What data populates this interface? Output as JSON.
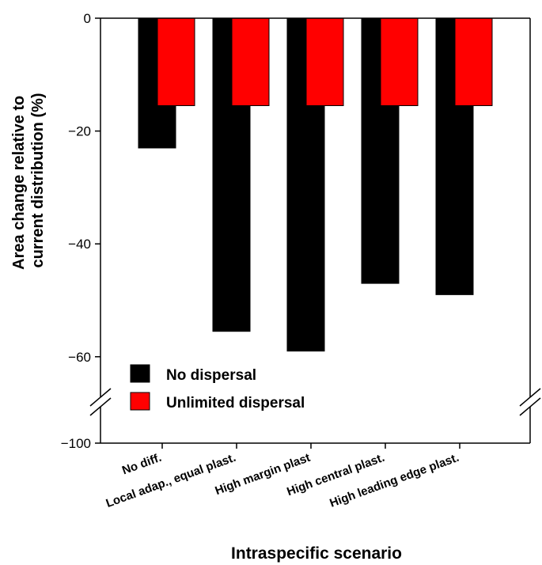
{
  "chart_data": {
    "type": "bar",
    "categories": [
      "No diff.",
      "Local adap., equal plast.",
      "High margin plast",
      "High central plast.",
      "High leading edge plast."
    ],
    "series": [
      {
        "name": "No dispersal",
        "values": [
          -23,
          -55.5,
          -59,
          -47,
          -49
        ],
        "color": "#000000"
      },
      {
        "name": "Unlimited dispersal",
        "values": [
          -15.5,
          -15.5,
          -15.5,
          -15.5,
          -15.5
        ],
        "color": "#ff0000"
      }
    ],
    "xlabel": "Intraspecific scenario",
    "ylabel_line1": "Area change relative to",
    "ylabel_line2": "current distribution (%)",
    "yticks": [
      {
        "value": 0,
        "label": "0"
      },
      {
        "value": -20,
        "label": "−20"
      },
      {
        "value": -40,
        "label": "−40"
      },
      {
        "value": -60,
        "label": "−60"
      },
      {
        "value": -100,
        "label": "−100"
      }
    ],
    "axis_break": true,
    "legend_position": "bottom-left",
    "grid": false
  }
}
